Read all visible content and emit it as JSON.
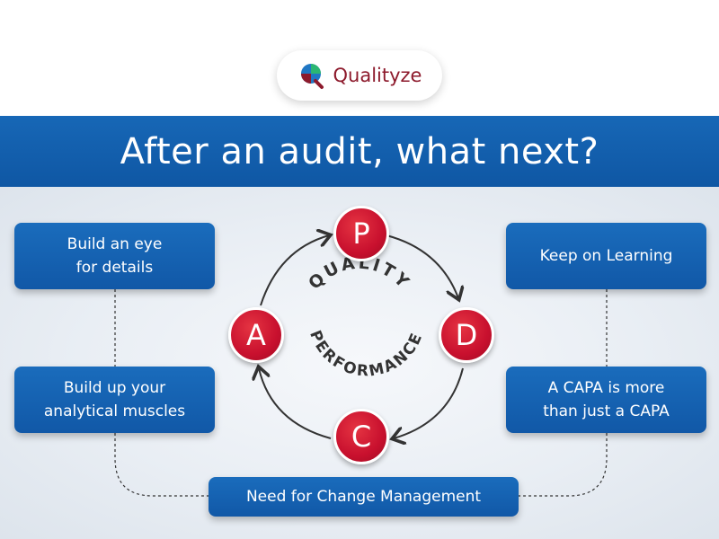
{
  "brand": {
    "name": "Qualityze"
  },
  "header": {
    "title": "After an audit, what next?"
  },
  "cycle": {
    "letters": [
      "P",
      "D",
      "C",
      "A"
    ],
    "center_top": "QUALITY",
    "center_bottom": "PERFORMANCE"
  },
  "cards": {
    "left_top": [
      "Build an eye",
      "for details"
    ],
    "left_bottom": [
      "Build up your",
      "analytical muscles"
    ],
    "right_top": [
      "Keep on Learning"
    ],
    "right_bottom": [
      "A CAPA is more",
      "than just a CAPA"
    ],
    "bottom": [
      "Need for Change Management"
    ]
  },
  "colors": {
    "banner": "#1767b6",
    "card": "#1a6cbc",
    "letter": "#c8102e",
    "brand": "#8d1a2c"
  }
}
